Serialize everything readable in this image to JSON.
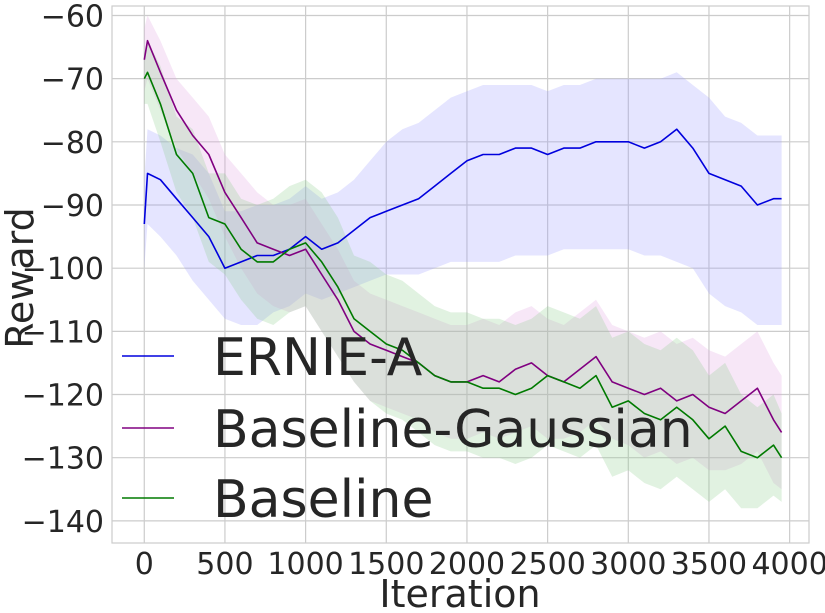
{
  "chart_data": {
    "type": "line",
    "xlabel": "Iteration",
    "ylabel": "Reward",
    "xlim": [
      -200,
      4120
    ],
    "ylim": [
      -143.5,
      -58.5
    ],
    "xticks": [
      0,
      500,
      1000,
      1500,
      2000,
      2500,
      3000,
      3500,
      4000
    ],
    "yticks": [
      -60,
      -70,
      -80,
      -90,
      -100,
      -110,
      -120,
      -130,
      -140
    ],
    "xtick_labels": [
      "0",
      "500",
      "1000",
      "1500",
      "2000",
      "2500",
      "3000",
      "3500",
      "4000"
    ],
    "ytick_labels": [
      "−60",
      "−70",
      "−80",
      "−90",
      "−100",
      "−110",
      "−120",
      "−130",
      "−140"
    ],
    "grid": true,
    "legend_position": "lower-left",
    "series": [
      {
        "name": "ERNIE-A",
        "color": "#0000dd",
        "band_color": "#9999ff",
        "x": [
          0,
          20,
          100,
          200,
          300,
          400,
          500,
          600,
          700,
          800,
          900,
          1000,
          1100,
          1200,
          1300,
          1400,
          1500,
          1600,
          1700,
          1800,
          1900,
          2000,
          2100,
          2200,
          2300,
          2400,
          2500,
          2600,
          2700,
          2800,
          2900,
          3000,
          3100,
          3200,
          3300,
          3400,
          3500,
          3600,
          3700,
          3800,
          3900,
          3950
        ],
        "y": [
          -93,
          -85,
          -86,
          -89,
          -92,
          -95,
          -100,
          -99,
          -98,
          -98,
          -97,
          -95,
          -97,
          -96,
          -94,
          -92,
          -91,
          -90,
          -89,
          -87,
          -85,
          -83,
          -82,
          -82,
          -81,
          -81,
          -82,
          -81,
          -81,
          -80,
          -80,
          -80,
          -81,
          -80,
          -78,
          -81,
          -85,
          -86,
          -87,
          -90,
          -89,
          -89
        ],
        "lower": [
          -100,
          -93,
          -95,
          -98,
          -102,
          -105,
          -108,
          -109,
          -109,
          -107,
          -106,
          -104,
          -105,
          -104,
          -103,
          -102,
          -101,
          -101,
          -101,
          -100,
          -99,
          -99,
          -99,
          -99,
          -98,
          -98,
          -98,
          -97,
          -97,
          -97,
          -97,
          -97,
          -98,
          -98,
          -99,
          -100,
          -104,
          -106,
          -107,
          -109,
          -109,
          -109
        ],
        "upper": [
          -86,
          -78,
          -79,
          -81,
          -82,
          -85,
          -91,
          -91,
          -90,
          -90,
          -89,
          -87,
          -89,
          -88,
          -86,
          -83,
          -80,
          -78,
          -77,
          -75,
          -73,
          -72,
          -71,
          -71,
          -71,
          -71,
          -72,
          -71,
          -71,
          -70,
          -70,
          -70,
          -70,
          -70,
          -69,
          -71,
          -73,
          -76,
          -77,
          -79,
          -79,
          -79
        ]
      },
      {
        "name": "Baseline-Gaussian",
        "color": "#800080",
        "band_color": "#e0a0e0",
        "x": [
          0,
          20,
          100,
          200,
          300,
          400,
          500,
          600,
          700,
          800,
          900,
          1000,
          1100,
          1200,
          1300,
          1400,
          1500,
          1600,
          1700,
          1800,
          1900,
          2000,
          2100,
          2200,
          2300,
          2400,
          2500,
          2600,
          2700,
          2800,
          2900,
          3000,
          3100,
          3200,
          3300,
          3400,
          3500,
          3600,
          3700,
          3800,
          3900,
          3950
        ],
        "y": [
          -67,
          -64,
          -69,
          -75,
          -79,
          -82,
          -88,
          -92,
          -96,
          -97,
          -98,
          -97,
          -101,
          -105,
          -110,
          -112,
          -113,
          -114,
          -115,
          -117,
          -118,
          -118,
          -117,
          -118,
          -116,
          -115,
          -117,
          -118,
          -116,
          -114,
          -118,
          -119,
          -120,
          -119,
          -121,
          -120,
          -122,
          -123,
          -121,
          -119,
          -124,
          -126
        ],
        "lower": [
          -72,
          -70,
          -75,
          -81,
          -85,
          -89,
          -95,
          -100,
          -104,
          -106,
          -107,
          -106,
          -110,
          -114,
          -118,
          -121,
          -122,
          -123,
          -124,
          -126,
          -127,
          -127,
          -126,
          -127,
          -126,
          -125,
          -127,
          -127,
          -126,
          -124,
          -127,
          -128,
          -130,
          -129,
          -131,
          -130,
          -132,
          -132,
          -131,
          -129,
          -134,
          -135
        ],
        "upper": [
          -62,
          -60,
          -64,
          -70,
          -73,
          -76,
          -82,
          -85,
          -88,
          -90,
          -90,
          -89,
          -93,
          -97,
          -102,
          -104,
          -105,
          -106,
          -107,
          -108,
          -109,
          -109,
          -108,
          -109,
          -107,
          -106,
          -108,
          -109,
          -107,
          -105,
          -109,
          -110,
          -111,
          -110,
          -112,
          -111,
          -113,
          -114,
          -112,
          -110,
          -115,
          -117
        ]
      },
      {
        "name": "Baseline",
        "color": "#007a00",
        "band_color": "#88cc88",
        "x": [
          0,
          20,
          100,
          200,
          300,
          400,
          500,
          600,
          700,
          800,
          900,
          1000,
          1100,
          1200,
          1300,
          1400,
          1500,
          1600,
          1700,
          1800,
          1900,
          2000,
          2100,
          2200,
          2300,
          2400,
          2500,
          2600,
          2700,
          2800,
          2900,
          3000,
          3100,
          3200,
          3300,
          3400,
          3500,
          3600,
          3700,
          3800,
          3900,
          3950
        ],
        "y": [
          -70,
          -69,
          -74,
          -82,
          -85,
          -92,
          -93,
          -97,
          -99,
          -99,
          -97,
          -96,
          -99,
          -103,
          -108,
          -110,
          -112,
          -113,
          -115,
          -117,
          -118,
          -118,
          -119,
          -119,
          -120,
          -119,
          -117,
          -118,
          -119,
          -117,
          -122,
          -121,
          -123,
          -124,
          -122,
          -124,
          -127,
          -125,
          -129,
          -130,
          -128,
          -130
        ],
        "lower": [
          -74,
          -74,
          -80,
          -88,
          -92,
          -99,
          -101,
          -105,
          -108,
          -109,
          -107,
          -106,
          -110,
          -114,
          -118,
          -121,
          -123,
          -124,
          -126,
          -128,
          -129,
          -129,
          -130,
          -130,
          -131,
          -130,
          -128,
          -129,
          -130,
          -128,
          -133,
          -132,
          -134,
          -135,
          -133,
          -135,
          -137,
          -135,
          -138,
          -138,
          -136,
          -137
        ],
        "upper": [
          -66,
          -64,
          -68,
          -76,
          -78,
          -85,
          -85,
          -89,
          -90,
          -89,
          -87,
          -86,
          -88,
          -92,
          -98,
          -99,
          -101,
          -102,
          -104,
          -106,
          -107,
          -107,
          -108,
          -108,
          -109,
          -108,
          -106,
          -107,
          -108,
          -106,
          -111,
          -110,
          -112,
          -113,
          -111,
          -113,
          -117,
          -115,
          -120,
          -122,
          -120,
          -123
        ]
      }
    ]
  }
}
